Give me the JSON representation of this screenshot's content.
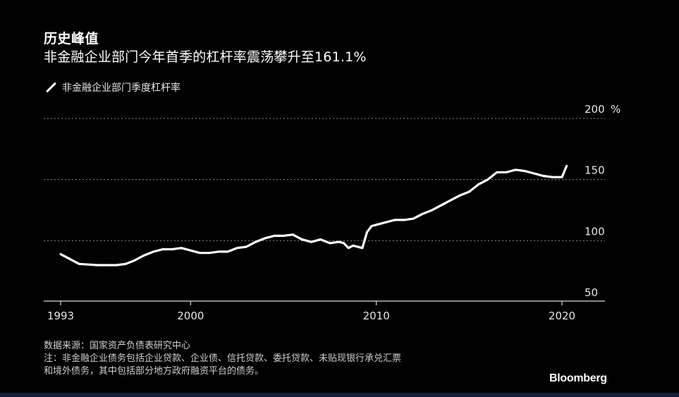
{
  "header": {
    "title": "历史峰值",
    "subtitle": "非金融企业部门今年首季的杠杆率震荡攀升至161.1%"
  },
  "legend": {
    "label": "非金融企业部门季度杠杆率"
  },
  "footer": {
    "source": "数据来源：国家资产负债表研究中心",
    "note_line1": "注：非金融企业债务包括企业贷款、企业债、信托贷款、委托贷款、未贴现银行承兑汇票",
    "note_line2": "和境外债务，其中包括部分地方政府融资平台的债务。",
    "brand": "Bloomberg"
  },
  "colors": {
    "background": "#000000",
    "line": "#ffffff",
    "grid": "#8a8a8a",
    "bottom_bar": "#13213a"
  },
  "chart_data": {
    "type": "line",
    "title": "历史峰值",
    "subtitle": "非金融企业部门今年首季的杠杆率震荡攀升至161.1%",
    "xlabel": "",
    "ylabel": "",
    "y_unit": "%",
    "xlim": [
      1992.6,
      2022.2
    ],
    "ylim": [
      50,
      200
    ],
    "x_ticks": [
      1993,
      2000,
      2010,
      2020
    ],
    "x_tick_labels": [
      "1993",
      "2000",
      "2010",
      "2020"
    ],
    "y_ticks": [
      50,
      100,
      150,
      200
    ],
    "y_tick_labels": [
      "50",
      "100",
      "150",
      "200"
    ],
    "grid": true,
    "legend_position": "top-left",
    "series": [
      {
        "name": "非金融企业部门季度杠杆率",
        "x": [
          1993.0,
          1994.0,
          1995.0,
          1996.0,
          1996.5,
          1997.0,
          1997.5,
          1998.0,
          1998.5,
          1999.0,
          1999.5,
          2000.0,
          2000.5,
          2001.0,
          2001.5,
          2002.0,
          2002.5,
          2003.0,
          2003.5,
          2004.0,
          2004.5,
          2005.0,
          2005.5,
          2006.0,
          2006.5,
          2007.0,
          2007.5,
          2008.0,
          2008.25,
          2008.5,
          2008.75,
          2009.0,
          2009.25,
          2009.5,
          2009.75,
          2010.0,
          2010.5,
          2011.0,
          2011.5,
          2012.0,
          2012.5,
          2013.0,
          2013.5,
          2014.0,
          2014.5,
          2015.0,
          2015.5,
          2016.0,
          2016.5,
          2017.0,
          2017.5,
          2018.0,
          2018.5,
          2019.0,
          2019.5,
          2020.0,
          2020.25
        ],
        "y": [
          89,
          81,
          80,
          80,
          81,
          84,
          88,
          91,
          93,
          93,
          94,
          92,
          90,
          90,
          91,
          91,
          94,
          95,
          99,
          102,
          104,
          104,
          105,
          101,
          99,
          101,
          98,
          99,
          98,
          94,
          96,
          95,
          94,
          107,
          112,
          113,
          115,
          117,
          117,
          118,
          122,
          125,
          129,
          133,
          137,
          140,
          146,
          150,
          156,
          156,
          158,
          157,
          155,
          153,
          152,
          152,
          161.1
        ]
      }
    ]
  }
}
